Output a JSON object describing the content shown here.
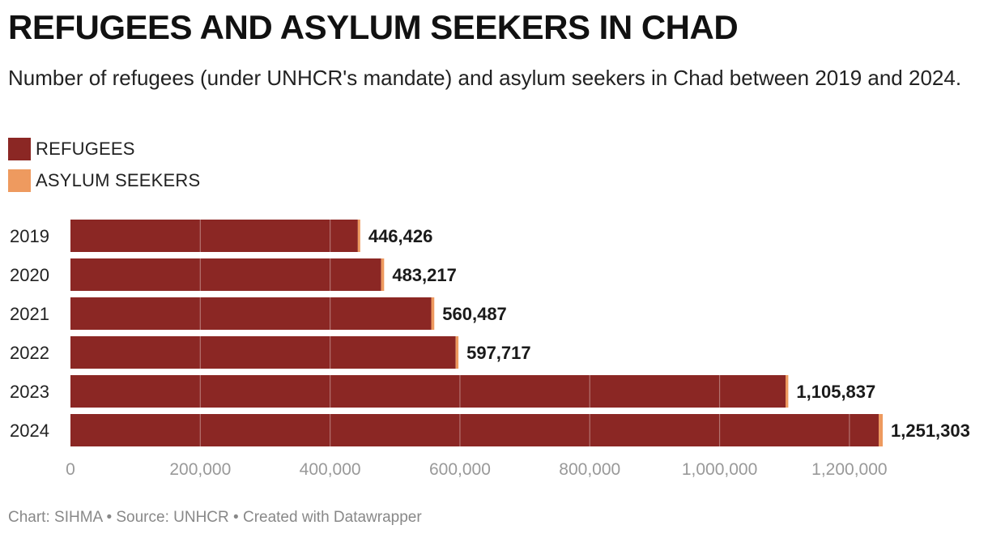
{
  "title": "REFUGEES AND ASYLUM SEEKERS IN CHAD",
  "subtitle": "Number of refugees (under UNHCR's mandate) and asylum seekers in Chad between 2019 and 2024.",
  "legend": [
    {
      "label": "REFUGEES",
      "color": "#8b2724"
    },
    {
      "label": "ASYLUM SEEKERS",
      "color": "#ee9a5f"
    }
  ],
  "footer": {
    "chart_by": "Chart: SIHMA",
    "source": "Source: UNHCR",
    "created": "Created with Datawrapper",
    "separator": "•"
  },
  "chart_data": {
    "type": "bar",
    "orientation": "horizontal",
    "stacked": true,
    "title": "REFUGEES AND ASYLUM SEEKERS IN CHAD",
    "subtitle": "Number of refugees (under UNHCR's mandate) and asylum seekers in Chad between 2019 and 2024.",
    "categories": [
      "2019",
      "2020",
      "2021",
      "2022",
      "2023",
      "2024"
    ],
    "series": [
      {
        "name": "REFUGEES",
        "color": "#8b2724",
        "values": [
          442700,
          478600,
          555800,
          593400,
          1101600,
          1245100
        ]
      },
      {
        "name": "ASYLUM SEEKERS",
        "color": "#ee9a5f",
        "values": [
          3726,
          4617,
          4687,
          4317,
          4237,
          6203
        ]
      }
    ],
    "totals": [
      446426,
      483217,
      560487,
      597717,
      1105837,
      1251303
    ],
    "total_labels": [
      "446,426",
      "483,217",
      "560,487",
      "597,717",
      "1,105,837",
      "1,251,303"
    ],
    "xlim": [
      0,
      1251303
    ],
    "xticks": [
      0,
      200000,
      400000,
      600000,
      800000,
      1000000,
      1200000
    ],
    "xtick_labels": [
      "0",
      "200,000",
      "400,000",
      "600,000",
      "800,000",
      "1,000,000",
      "1,200,000"
    ],
    "grid": true,
    "legend_position": "top-left"
  }
}
